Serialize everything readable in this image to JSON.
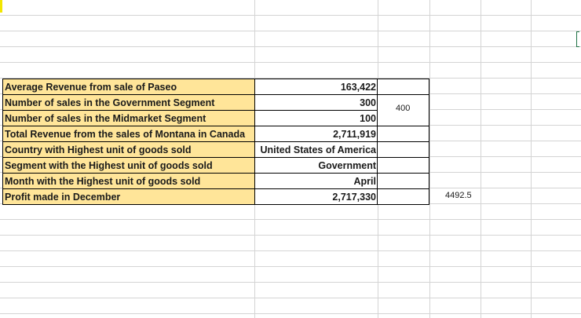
{
  "sheet": {
    "rows": [
      {
        "label": "Average Revenue from sale of Paseo",
        "value": "163,422"
      },
      {
        "label": "Number of sales in the Government Segment",
        "value": "300"
      },
      {
        "label": "Number of sales in the Midmarket Segment",
        "value": "100"
      },
      {
        "label": "Total Revenue from the sales of Montana in Canada",
        "value": "2,711,919"
      },
      {
        "label": "Country with Highest unit of goods sold",
        "value": "United States of America"
      },
      {
        "label": "Segment with the Highest unit of goods sold",
        "value": "Government"
      },
      {
        "label": "Month with the Highest unit of goods sold",
        "value": "April"
      },
      {
        "label": "Profit made in December",
        "value": "2,717,330"
      }
    ],
    "side_value": "400",
    "extra_value": "4492.5"
  },
  "colors": {
    "label_fill": "#ffe599",
    "gridline": "#d4d4d4",
    "border": "#000000"
  }
}
